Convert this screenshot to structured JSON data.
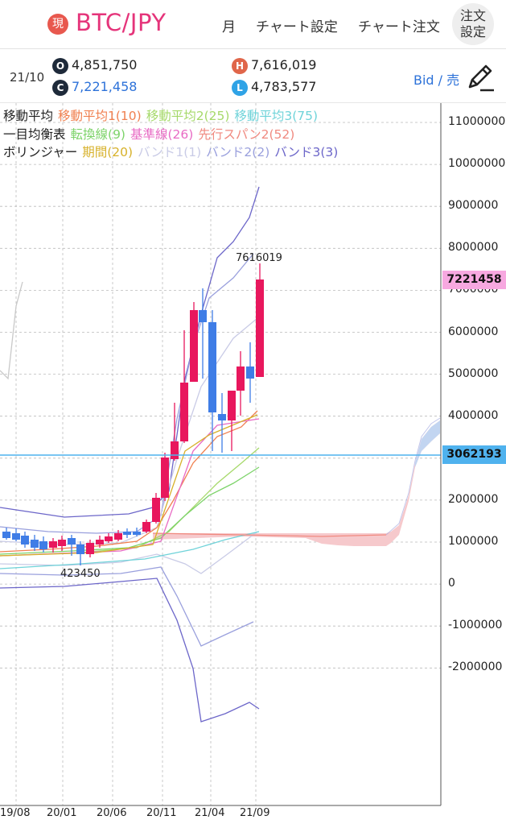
{
  "header": {
    "badge": "現",
    "symbol": "BTC/JPY",
    "period": "月",
    "chart_settings": "チャート設定",
    "chart_order": "チャート注文",
    "order_settings_line1": "注文",
    "order_settings_line2": "設定"
  },
  "info": {
    "date": "21/10",
    "open_icon": "O",
    "open": "4,851,750",
    "close_icon": "C",
    "close": "7,221,458",
    "high_icon": "H",
    "high": "7,616,019",
    "low_icon": "L",
    "low": "4,783,577",
    "bid_label": "Bid / 売",
    "pen_icon": "pencil-icon"
  },
  "legend": {
    "ma": {
      "title": "移動平均",
      "items": [
        "移動平均1(10)",
        "移動平均2(25)",
        "移動平均3(75)"
      ]
    },
    "ichimoku": {
      "title": "一目均衡表",
      "items": [
        "転換線(9)",
        "基準線(26)",
        "先行スパン2(52)"
      ]
    },
    "bollinger": {
      "title": "ボリンジャー",
      "items": [
        "期間(20)",
        "バンド1(1)",
        "バンド2(2)",
        "バンド3(3)"
      ]
    }
  },
  "colors": {
    "up": "#e8175d",
    "down": "#3f7de6",
    "ma1": "#f08050",
    "ma2": "#a6d96a",
    "ma3": "#6fd3d9",
    "tenkan": "#7dd36a",
    "kijun": "#e86bc4",
    "span2": "#f08a80",
    "kikan": "#d7b12a",
    "band1": "#c9cbe6",
    "band2": "#9aa0dd",
    "band3": "#6c66c9",
    "last_price_tag": "#f7a8e0",
    "hline_tag": "#4fb2ee"
  },
  "chart_data": {
    "type": "candlestick",
    "y_axis_labels": [
      "11000000",
      "10000000",
      "9000000",
      "8000000",
      "7000000",
      "6000000",
      "5000000",
      "4000000",
      "3000000",
      "2000000",
      "1000000",
      "0",
      "-1000000",
      "-2000000"
    ],
    "x_axis_labels": [
      "19/08",
      "20/01",
      "20/06",
      "20/11",
      "21/04",
      "21/09"
    ],
    "last_price": "7221458",
    "horizontal_line": "3062193",
    "high_annotation": "7616019",
    "low_annotation": "423450"
  }
}
